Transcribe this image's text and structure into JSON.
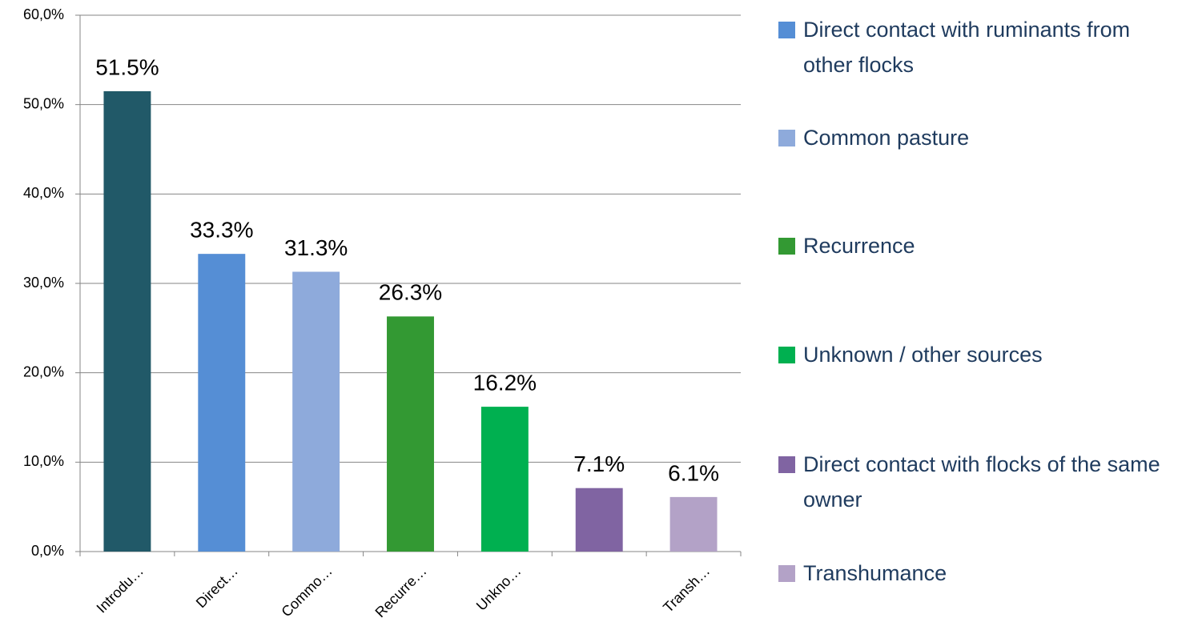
{
  "chart_data": {
    "type": "bar",
    "categories": [
      "Introdu…",
      "Direct…",
      "Commo…",
      "Recurre…",
      "Unkno…",
      null,
      "Transh…"
    ],
    "values": [
      51.5,
      33.3,
      31.3,
      26.3,
      16.2,
      7.1,
      6.1
    ],
    "value_labels": [
      "51.5%",
      "33.3%",
      "31.3%",
      "26.3%",
      "16.2%",
      "7.1%",
      "6.1%"
    ],
    "colors": [
      "#215968",
      "#558ed5",
      "#8eaadb",
      "#339933",
      "#00b050",
      "#8064a2",
      "#b3a2c7"
    ],
    "ylim": [
      0,
      60
    ],
    "yticks": [
      {
        "value": 0,
        "label": "0,0%"
      },
      {
        "value": 10,
        "label": "10,0%"
      },
      {
        "value": 20,
        "label": "20,0%"
      },
      {
        "value": 30,
        "label": "30,0%"
      },
      {
        "value": 40,
        "label": "40,0%"
      },
      {
        "value": 50,
        "label": "50,0%"
      },
      {
        "value": 60,
        "label": "60,0%"
      }
    ],
    "grid": true,
    "legend": [
      {
        "name": "Direct contact  with  ruminants from other  flocks",
        "color": "#558ed5"
      },
      {
        "name": "Common pasture",
        "color": "#8eaadb"
      },
      {
        "name": "Recurrence",
        "color": "#339933"
      },
      {
        "name": "Unknown / other sources",
        "color": "#00b050"
      },
      {
        "name": "Direct contact  with  flocks of the same owner",
        "color": "#8064a2"
      },
      {
        "name": "Transhumance",
        "color": "#b3a2c7"
      }
    ]
  }
}
